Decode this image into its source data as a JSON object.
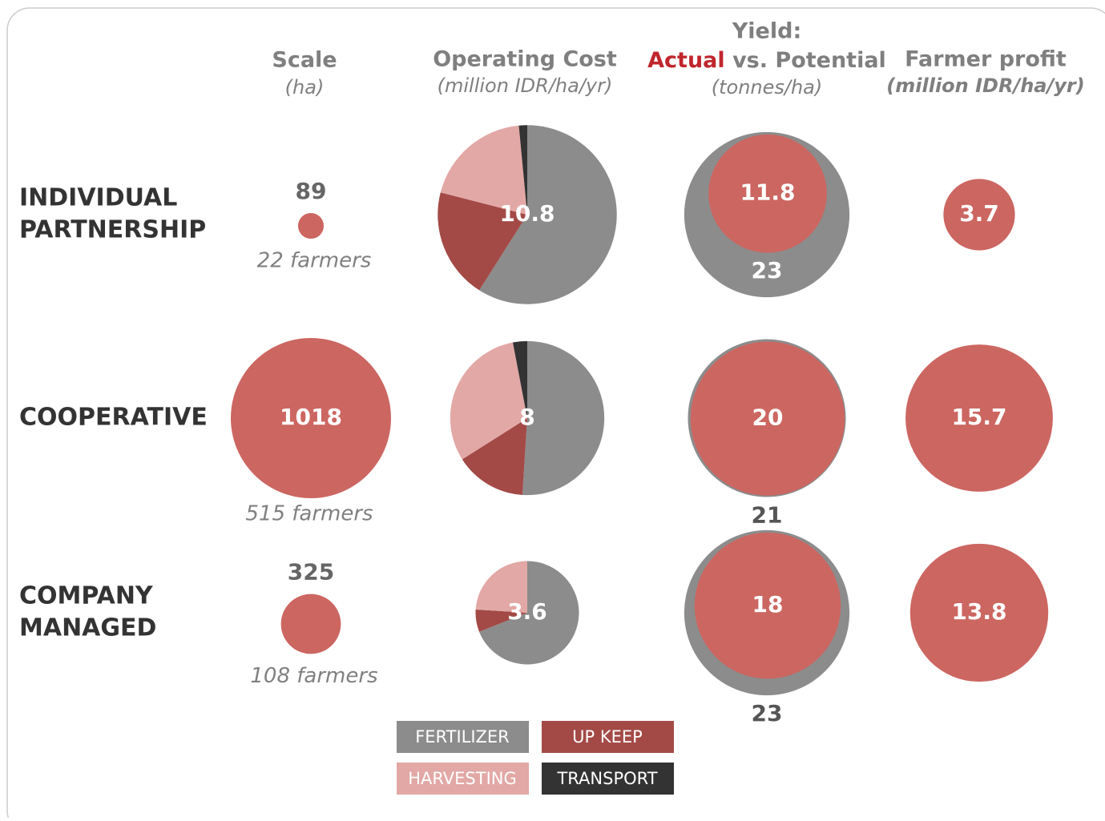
{
  "header": {
    "scale": {
      "title": "Scale",
      "unit": "(ha)"
    },
    "cost": {
      "title": "Operating Cost",
      "unit": "(million IDR/ha/yr)"
    },
    "yield": {
      "title": "Yield:",
      "actual": "Actual",
      "rest": " vs. Potential",
      "unit": "(tonnes/ha)"
    },
    "profit": {
      "title": "Farmer profit",
      "unit": "(million IDR/ha/yr)"
    }
  },
  "rows": [
    {
      "label": [
        "INDIVIDUAL",
        "PARTNERSHIP"
      ],
      "scale": 89,
      "farmers": "22 farmers",
      "cost": 10.8,
      "cost_shares": [
        59,
        20,
        19.5,
        1.5
      ],
      "yield_actual": 11.8,
      "yield_potential": 23,
      "profit": 3.7
    },
    {
      "label": [
        "COOPERATIVE"
      ],
      "scale": 1018,
      "farmers": "515 farmers",
      "cost": 8.0,
      "cost_shares": [
        51,
        15,
        31,
        3
      ],
      "yield_actual": 20,
      "yield_potential": 21,
      "profit": 15.7
    },
    {
      "label": [
        "COMPANY",
        "MANAGED"
      ],
      "scale": 325,
      "farmers": "108 farmers",
      "cost": 3.6,
      "cost_shares": [
        69,
        7,
        24,
        0
      ],
      "yield_actual": 18,
      "yield_potential": 23,
      "profit": 13.8
    }
  ],
  "legend": [
    {
      "name": "FERTILIZER",
      "color": "#8c8c8c"
    },
    {
      "name": "UP KEEP",
      "color": "#a34a47"
    },
    {
      "name": "HARVESTING",
      "color": "#e2a8a6"
    },
    {
      "name": "TRANSPORT",
      "color": "#333333"
    }
  ],
  "colors": {
    "actual": "#cc6661",
    "potential": "#8c8c8c"
  }
}
